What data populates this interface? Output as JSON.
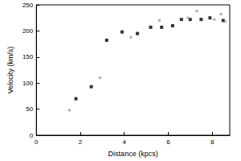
{
  "chart_data": {
    "type": "scatter",
    "x_label": "Distance (kpcs)",
    "y_label": "Velocity (km/s)",
    "xlim": [
      0,
      8.8
    ],
    "xticks": [
      0,
      2,
      4,
      6,
      8
    ],
    "ylim": [
      0,
      250
    ],
    "yticks": [
      0,
      50,
      100,
      150,
      200,
      250
    ],
    "grid": false,
    "series": [
      {
        "color": "#000000",
        "marker": "square",
        "x": [
          1.8,
          2.5,
          3.2,
          3.9,
          4.6,
          5.2,
          5.7,
          6.2,
          6.6,
          7.0,
          7.5,
          7.9,
          8.5
        ],
        "values": [
          70,
          93,
          182,
          198,
          195,
          207,
          207,
          210,
          222,
          222,
          222,
          225,
          220
        ]
      },
      {
        "color": "#999999",
        "marker": "square",
        "x": [
          1.5,
          2.9,
          4.3,
          5.6,
          6.9,
          7.3,
          8.1,
          8.4,
          8.6
        ],
        "values": [
          48,
          110,
          188,
          220,
          225,
          238,
          222,
          232,
          218
        ]
      }
    ]
  }
}
